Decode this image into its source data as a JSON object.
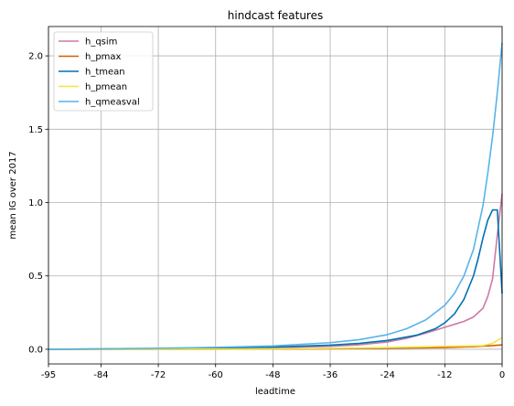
{
  "chart_data": {
    "type": "line",
    "title": "hindcast features",
    "xlabel": "leadtime",
    "ylabel": "mean IG over 2017",
    "xlim": [
      -95,
      0
    ],
    "ylim": [
      -0.1,
      2.2
    ],
    "xticks": [
      -95,
      -84,
      -72,
      -60,
      -48,
      -36,
      -24,
      -12,
      0
    ],
    "yticks": [
      0.0,
      0.5,
      1.0,
      1.5,
      2.0
    ],
    "ytick_labels": [
      "0.0",
      "0.5",
      "1.0",
      "1.5",
      "2.0"
    ],
    "grid": true,
    "legend_position": "upper-left",
    "series": [
      {
        "name": "h_qsim",
        "color": "#cc79a7",
        "x": [
          -95,
          -84,
          -72,
          -60,
          -48,
          -36,
          -30,
          -24,
          -20,
          -16,
          -12,
          -10,
          -8,
          -6,
          -5,
          -4,
          -3,
          -2,
          -1,
          0
        ],
        "y": [
          0.0,
          0.0,
          0.002,
          0.005,
          0.01,
          0.02,
          0.03,
          0.05,
          0.075,
          0.11,
          0.15,
          0.17,
          0.19,
          0.22,
          0.25,
          0.28,
          0.36,
          0.48,
          0.78,
          1.06
        ]
      },
      {
        "name": "h_pmax",
        "color": "#d55e00",
        "x": [
          -95,
          -84,
          -72,
          -60,
          -48,
          -36,
          -24,
          -12,
          -6,
          -2,
          0
        ],
        "y": [
          0.0,
          0.0,
          0.0,
          0.0,
          0.002,
          0.004,
          0.007,
          0.012,
          0.018,
          0.025,
          0.03
        ]
      },
      {
        "name": "h_tmean",
        "color": "#0072b2",
        "x": [
          -95,
          -84,
          -72,
          -60,
          -48,
          -36,
          -30,
          -24,
          -18,
          -14,
          -12,
          -10,
          -8,
          -6,
          -5,
          -4,
          -3,
          -2,
          -1,
          0
        ],
        "y": [
          0.0,
          0.002,
          0.004,
          0.008,
          0.015,
          0.028,
          0.04,
          0.06,
          0.095,
          0.14,
          0.18,
          0.24,
          0.34,
          0.5,
          0.62,
          0.76,
          0.88,
          0.95,
          0.95,
          0.38
        ]
      },
      {
        "name": "h_pmean",
        "color": "#f0e442",
        "x": [
          -95,
          -84,
          -72,
          -60,
          -48,
          -36,
          -24,
          -18,
          -12,
          -8,
          -4,
          -2,
          0
        ],
        "y": [
          0.0,
          0.0,
          0.0,
          0.001,
          0.003,
          0.006,
          0.012,
          0.016,
          0.02,
          0.022,
          0.025,
          0.04,
          0.08
        ]
      },
      {
        "name": "h_qmeasval",
        "color": "#56b4e9",
        "x": [
          -95,
          -84,
          -72,
          -60,
          -48,
          -36,
          -30,
          -24,
          -20,
          -16,
          -12,
          -10,
          -8,
          -6,
          -4,
          -3,
          -2,
          -1,
          0
        ],
        "y": [
          0.0,
          0.003,
          0.007,
          0.013,
          0.023,
          0.045,
          0.065,
          0.1,
          0.14,
          0.2,
          0.3,
          0.38,
          0.5,
          0.68,
          0.98,
          1.2,
          1.45,
          1.75,
          2.09
        ]
      }
    ]
  }
}
